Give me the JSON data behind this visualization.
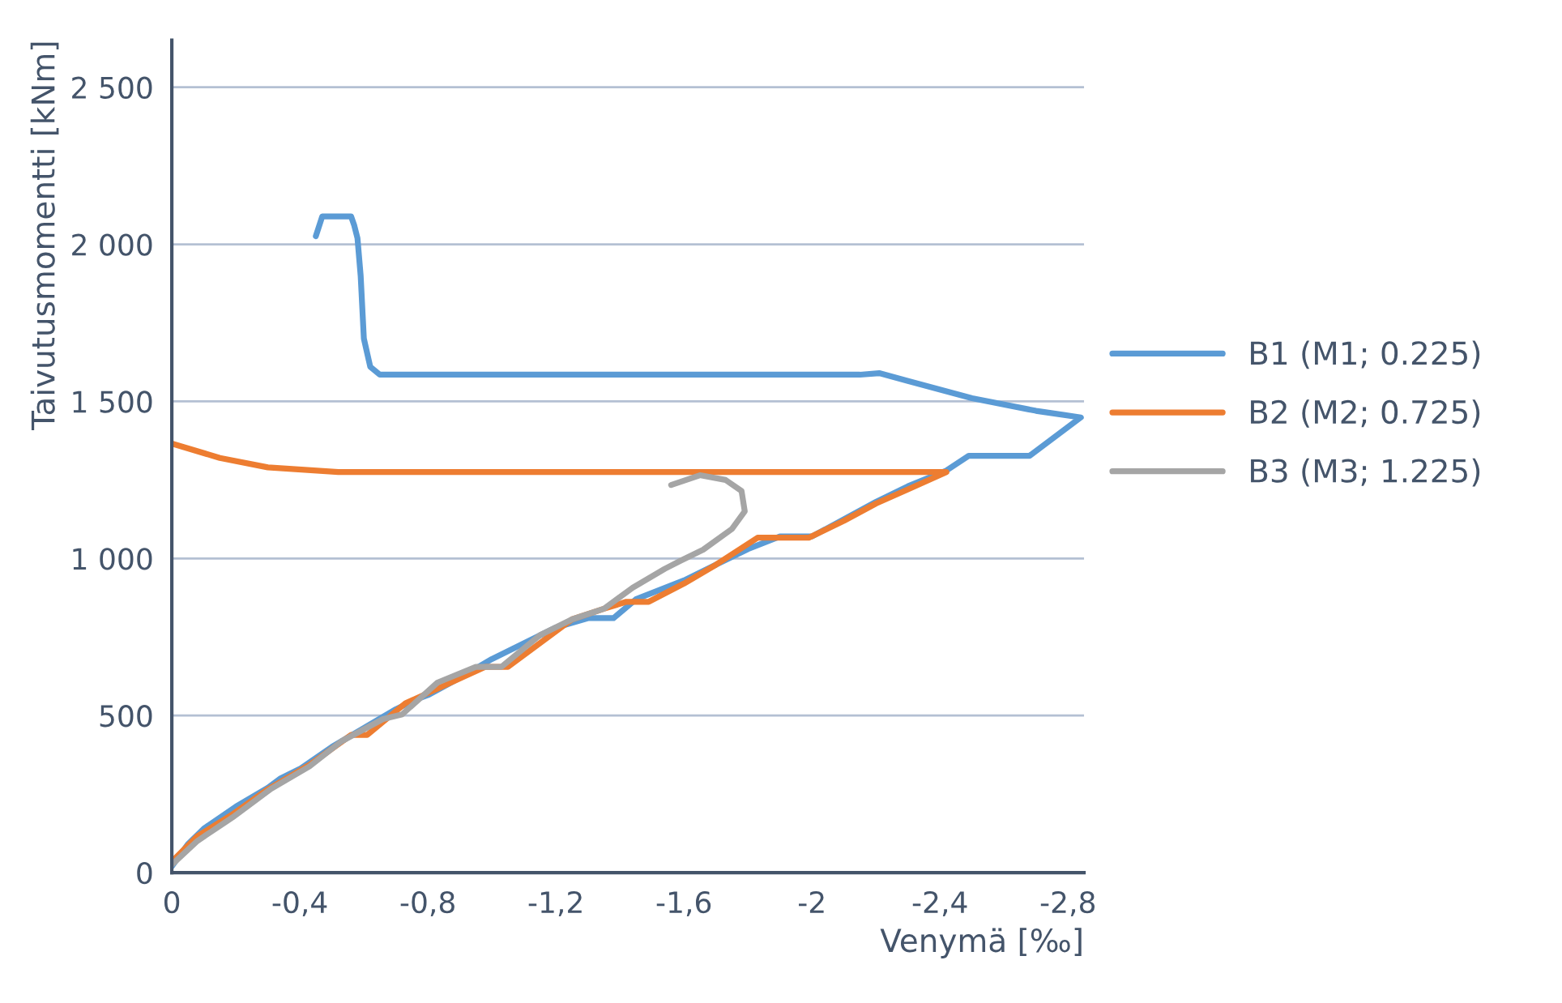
{
  "chart_data": {
    "type": "line",
    "xlabel": "Venymä [‰]",
    "ylabel": "Taivutusmomentti [kNm]",
    "xlim": [
      0,
      -2.85
    ],
    "ylim": [
      0,
      2650
    ],
    "xticks": [
      0,
      {
        "value": -0.4,
        "label": "-0,4"
      },
      {
        "value": -0.8,
        "label": "-0,8"
      },
      {
        "value": -1.2,
        "label": "-1,2"
      },
      {
        "value": -1.6,
        "label": "-1,6"
      },
      -2,
      {
        "value": -2.4,
        "label": "-2,4"
      },
      {
        "value": -2.8,
        "label": "-2,8"
      }
    ],
    "yticks": [
      0,
      500,
      {
        "value": 1000,
        "label": "1 000"
      },
      {
        "value": 1500,
        "label": "1 500"
      },
      {
        "value": 2000,
        "label": "2 000"
      },
      {
        "value": 2500,
        "label": "2 500"
      }
    ],
    "grid": "y",
    "legend": "right",
    "marker": "none",
    "line_style": "solid",
    "series": [
      {
        "name": "B1 (M1; 0.225)",
        "color": "#5b9bd5",
        "x": [
          0,
          -0.05,
          -0.1,
          -0.2,
          -0.3,
          -0.34,
          -0.4,
          -0.5,
          -0.6,
          -0.7,
          -0.76,
          -0.8,
          -0.9,
          -1.0,
          -1.1,
          -1.2,
          -1.3,
          -1.38,
          -1.45,
          -1.6,
          -1.7,
          -1.8,
          -1.9,
          -2.0,
          -2.2,
          -2.3,
          -2.42,
          -2.49,
          -2.68,
          -2.84,
          -2.7,
          -2.5,
          -2.3,
          -2.21,
          -2.15,
          -0.65,
          -0.62,
          -0.6,
          -0.59,
          -0.58,
          -0.57,
          -0.56,
          -0.47,
          -0.45
        ],
        "values": [
          20,
          90,
          140,
          210,
          270,
          300,
          330,
          400,
          460,
          520,
          550,
          565,
          620,
          680,
          730,
          780,
          810,
          810,
          870,
          930,
          980,
          1030,
          1070,
          1070,
          1180,
          1230,
          1280,
          1327,
          1327,
          1449,
          1470,
          1510,
          1565,
          1590,
          1585,
          1585,
          1610,
          1700,
          1900,
          2020,
          2060,
          2089,
          2089,
          2026
        ]
      },
      {
        "name": "B2 (M2; 0.725)",
        "color": "#ed7d31",
        "x": [
          0,
          -0.08,
          -0.19,
          -0.3,
          -0.43,
          -0.56,
          -0.61,
          -0.73,
          -0.98,
          -1.05,
          -1.25,
          -1.35,
          -1.42,
          -1.49,
          -1.6,
          -1.7,
          -1.83,
          -1.99,
          -2.1,
          -2.2,
          -2.3,
          -2.42,
          -0.52,
          -0.3,
          -0.15,
          0
        ],
        "values": [
          35,
          116,
          186,
          265,
          343,
          438,
          438,
          539,
          655,
          655,
          806,
          840,
          862,
          862,
          920,
          980,
          1066,
          1066,
          1120,
          1175,
          1220,
          1275,
          1275,
          1290,
          1320,
          1366
        ]
      },
      {
        "name": "B3 (M3; 1.225)",
        "color": "#a5a5a5",
        "x": [
          0,
          -0.08,
          -0.19,
          -0.31,
          -0.43,
          -0.53,
          -0.66,
          -0.72,
          -0.83,
          -0.95,
          -1.03,
          -1.15,
          -1.25,
          -1.35,
          -1.44,
          -1.54,
          -1.59,
          -1.66,
          -1.75,
          -1.79,
          -1.78,
          -1.73,
          -1.65,
          -1.56
        ],
        "values": [
          25,
          101,
          176,
          267,
          338,
          418,
          489,
          504,
          605,
          655,
          655,
          756,
          806,
          840,
          907,
          967,
          993,
          1028,
          1094,
          1150,
          1215,
          1250,
          1265,
          1234
        ]
      }
    ]
  }
}
